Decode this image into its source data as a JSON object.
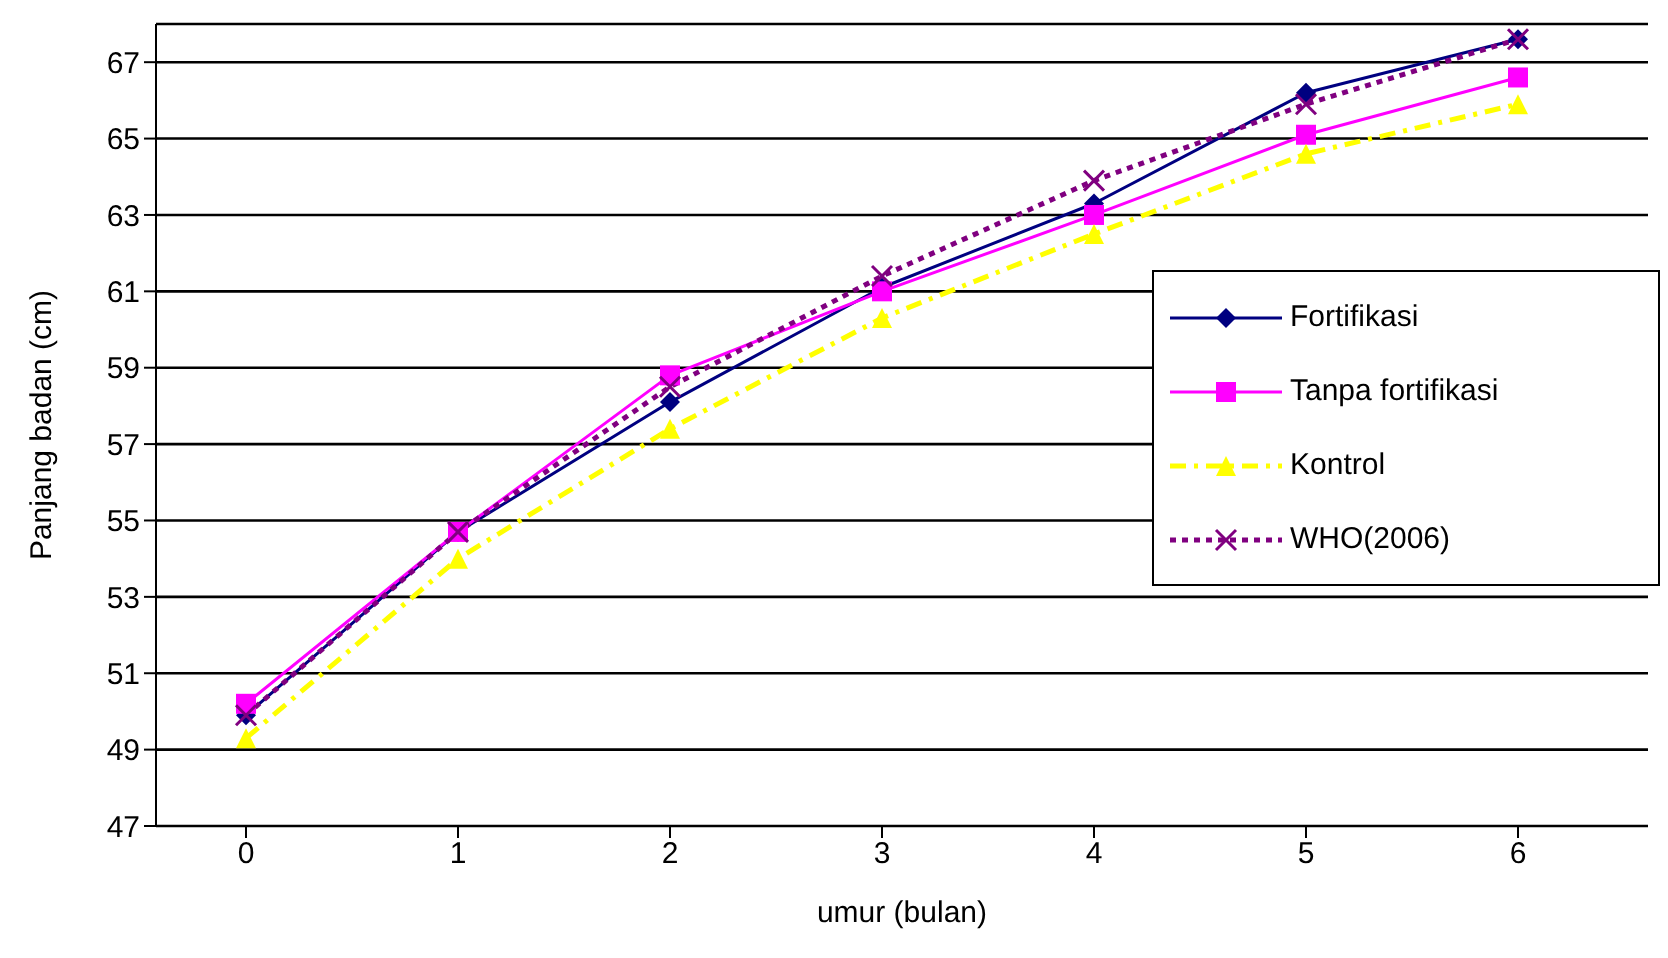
{
  "chart_data": {
    "type": "line",
    "xlabel": "umur (bulan)",
    "ylabel": "Panjang badan (cm)",
    "categories": [
      "0",
      "1",
      "2",
      "3",
      "4",
      "5",
      "6"
    ],
    "ylim": [
      47,
      68
    ],
    "yticks": [
      47,
      49,
      51,
      53,
      55,
      57,
      59,
      61,
      63,
      65,
      67
    ],
    "grid": "y",
    "legend": "right",
    "series": [
      {
        "name": "Fortifikasi",
        "color": "#000080",
        "marker": "diamond",
        "line_style": "solid",
        "values": [
          49.9,
          54.7,
          58.1,
          61.1,
          63.3,
          66.2,
          67.6
        ]
      },
      {
        "name": "Tanpa fortifikasi",
        "color": "#ff00ff",
        "marker": "square",
        "line_style": "solid",
        "values": [
          50.2,
          54.7,
          58.8,
          61.0,
          63.0,
          65.1,
          66.6
        ]
      },
      {
        "name": "Kontrol",
        "color": "#ffff00",
        "marker": "triangle",
        "line_style": "dashed",
        "values": [
          49.3,
          54.0,
          57.4,
          60.3,
          62.5,
          64.6,
          65.9
        ]
      },
      {
        "name": "WHO(2006)",
        "color": "#800080",
        "marker": "cross",
        "line_style": "dotted",
        "values": [
          49.9,
          54.7,
          58.5,
          61.4,
          63.9,
          65.9,
          67.6
        ]
      }
    ]
  }
}
